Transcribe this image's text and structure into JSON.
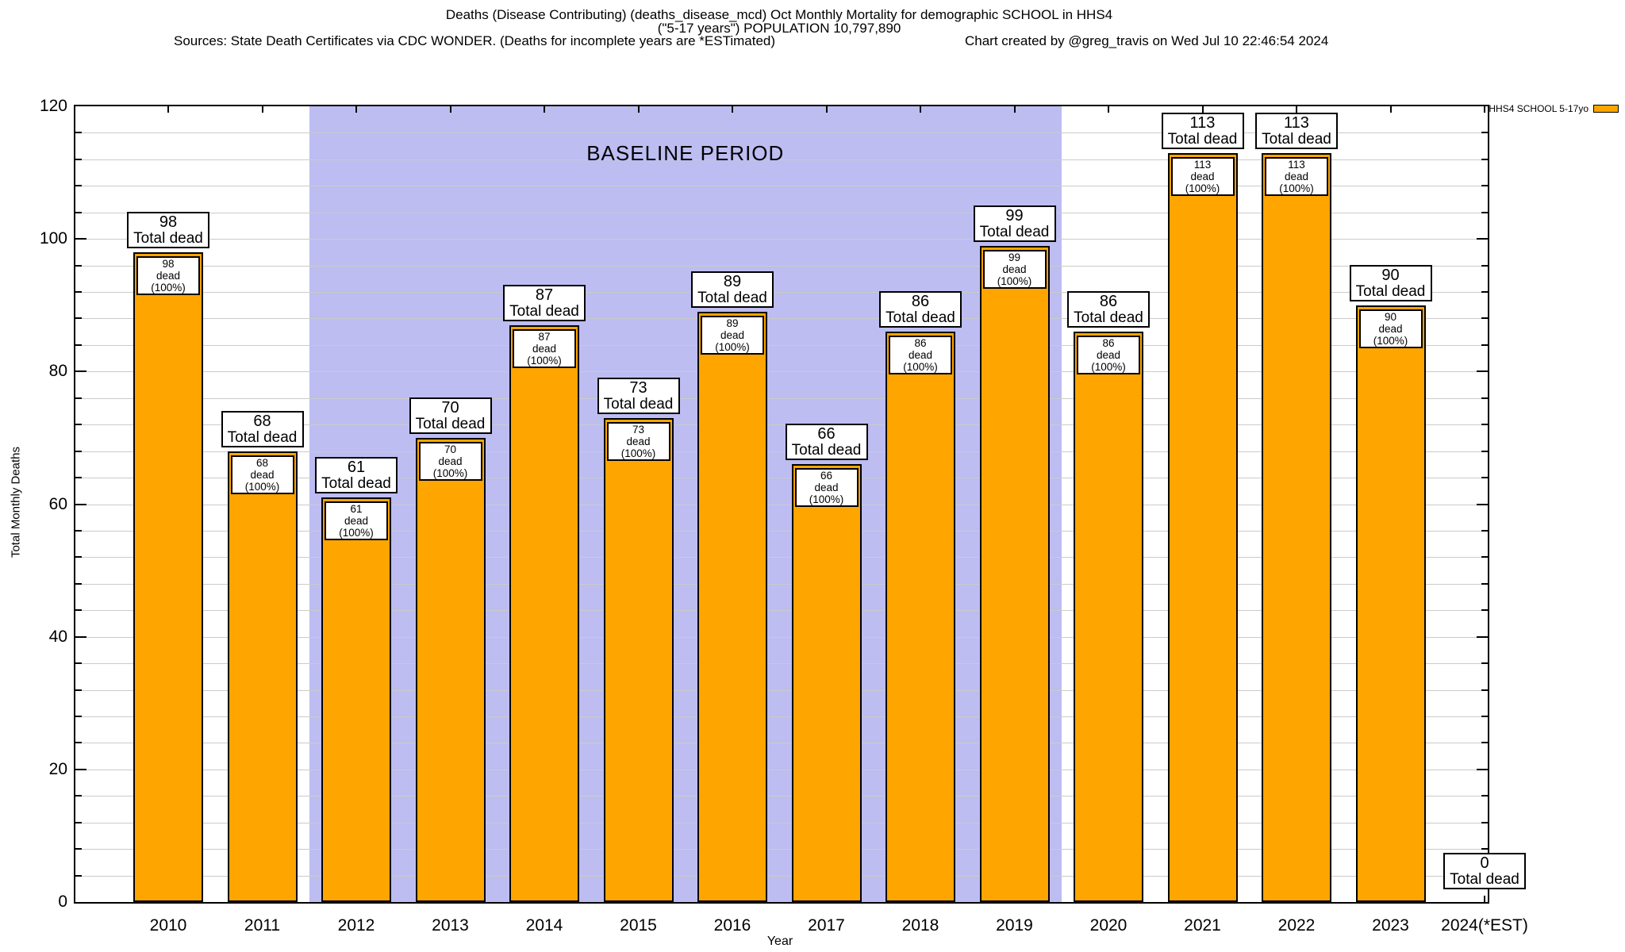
{
  "header": {
    "title_line1": "Deaths (Disease Contributing) (deaths_disease_mcd) Oct Monthly Mortality for demographic SCHOOL in HHS4",
    "title_line2": "(\"5-17 years\") POPULATION 10,797,890",
    "sources": "Sources: State Death Certificates via CDC WONDER. (Deaths for incomplete years are *ESTimated)",
    "credit": "Chart created by @greg_travis on Wed Jul 10 22:46:54 2024"
  },
  "legend": {
    "label": "HHS4 SCHOOL 5-17yo",
    "swatch_color": "#FFA500"
  },
  "chart_data": {
    "type": "bar",
    "title": "Deaths (Disease Contributing) (deaths_disease_mcd) Oct Monthly Mortality for demographic SCHOOL in HHS4 (\"5-17 years\") POPULATION 10,797,890",
    "xlabel": "Year",
    "ylabel": "Total Monthly Deaths",
    "ylim": [
      0,
      120
    ],
    "ytick_step": 20,
    "minor_grid_step": 4,
    "ytick_labels": [
      "0",
      "20",
      "40",
      "60",
      "80",
      "100",
      "120"
    ],
    "grid": true,
    "legend_position": "top-right",
    "categories": [
      "2010",
      "2011",
      "2012",
      "2013",
      "2014",
      "2015",
      "2016",
      "2017",
      "2018",
      "2019",
      "2020",
      "2021",
      "2022",
      "2023",
      "2024(*EST)"
    ],
    "values": [
      98,
      68,
      61,
      70,
      87,
      73,
      89,
      66,
      86,
      99,
      86,
      113,
      113,
      90,
      0
    ],
    "bars": [
      {
        "year": "2010",
        "total": 98,
        "top_value": "98",
        "top_sub": "Total dead",
        "inner_value": "98",
        "inner_sub": "dead (100%)"
      },
      {
        "year": "2011",
        "total": 68,
        "top_value": "68",
        "top_sub": "Total dead",
        "inner_value": "68",
        "inner_sub": "dead (100%)"
      },
      {
        "year": "2012",
        "total": 61,
        "top_value": "61",
        "top_sub": "Total dead",
        "inner_value": "61",
        "inner_sub": "dead (100%)"
      },
      {
        "year": "2013",
        "total": 70,
        "top_value": "70",
        "top_sub": "Total dead",
        "inner_value": "70",
        "inner_sub": "dead (100%)"
      },
      {
        "year": "2014",
        "total": 87,
        "top_value": "87",
        "top_sub": "Total dead",
        "inner_value": "87",
        "inner_sub": "dead (100%)"
      },
      {
        "year": "2015",
        "total": 73,
        "top_value": "73",
        "top_sub": "Total dead",
        "inner_value": "73",
        "inner_sub": "dead (100%)"
      },
      {
        "year": "2016",
        "total": 89,
        "top_value": "89",
        "top_sub": "Total dead",
        "inner_value": "89",
        "inner_sub": "dead (100%)"
      },
      {
        "year": "2017",
        "total": 66,
        "top_value": "66",
        "top_sub": "Total dead",
        "inner_value": "66",
        "inner_sub": "dead (100%)"
      },
      {
        "year": "2018",
        "total": 86,
        "top_value": "86",
        "top_sub": "Total dead",
        "inner_value": "86",
        "inner_sub": "dead (100%)"
      },
      {
        "year": "2019",
        "total": 99,
        "top_value": "99",
        "top_sub": "Total dead",
        "inner_value": "99",
        "inner_sub": "dead (100%)"
      },
      {
        "year": "2020",
        "total": 86,
        "top_value": "86",
        "top_sub": "Total dead",
        "inner_value": "86",
        "inner_sub": "dead (100%)"
      },
      {
        "year": "2021",
        "total": 113,
        "top_value": "113",
        "top_sub": "Total dead",
        "inner_value": "113",
        "inner_sub": "dead (100%)"
      },
      {
        "year": "2022",
        "total": 113,
        "top_value": "113",
        "top_sub": "Total dead",
        "inner_value": "113",
        "inner_sub": "dead (100%)"
      },
      {
        "year": "2023",
        "total": 90,
        "top_value": "90",
        "top_sub": "Total dead",
        "inner_value": "90",
        "inner_sub": "dead (100%)"
      },
      {
        "year": "2024(*EST)",
        "total": 0,
        "top_value": "0",
        "top_sub": "Total dead",
        "inner_value": null,
        "inner_sub": null
      }
    ],
    "series": [
      {
        "name": "HHS4 SCHOOL 5-17yo",
        "values": [
          98,
          68,
          61,
          70,
          87,
          73,
          89,
          66,
          86,
          99,
          86,
          113,
          113,
          90,
          0
        ]
      }
    ],
    "baseline": {
      "label": "BASELINE PERIOD",
      "from_year": 2011.5,
      "to_year": 2019.5,
      "color": "#BDBDF2"
    },
    "colors": {
      "bar_fill": "#FFA500",
      "bar_border": "#000000",
      "grid": "#CBCBCB",
      "plot_border": "#000000"
    }
  }
}
